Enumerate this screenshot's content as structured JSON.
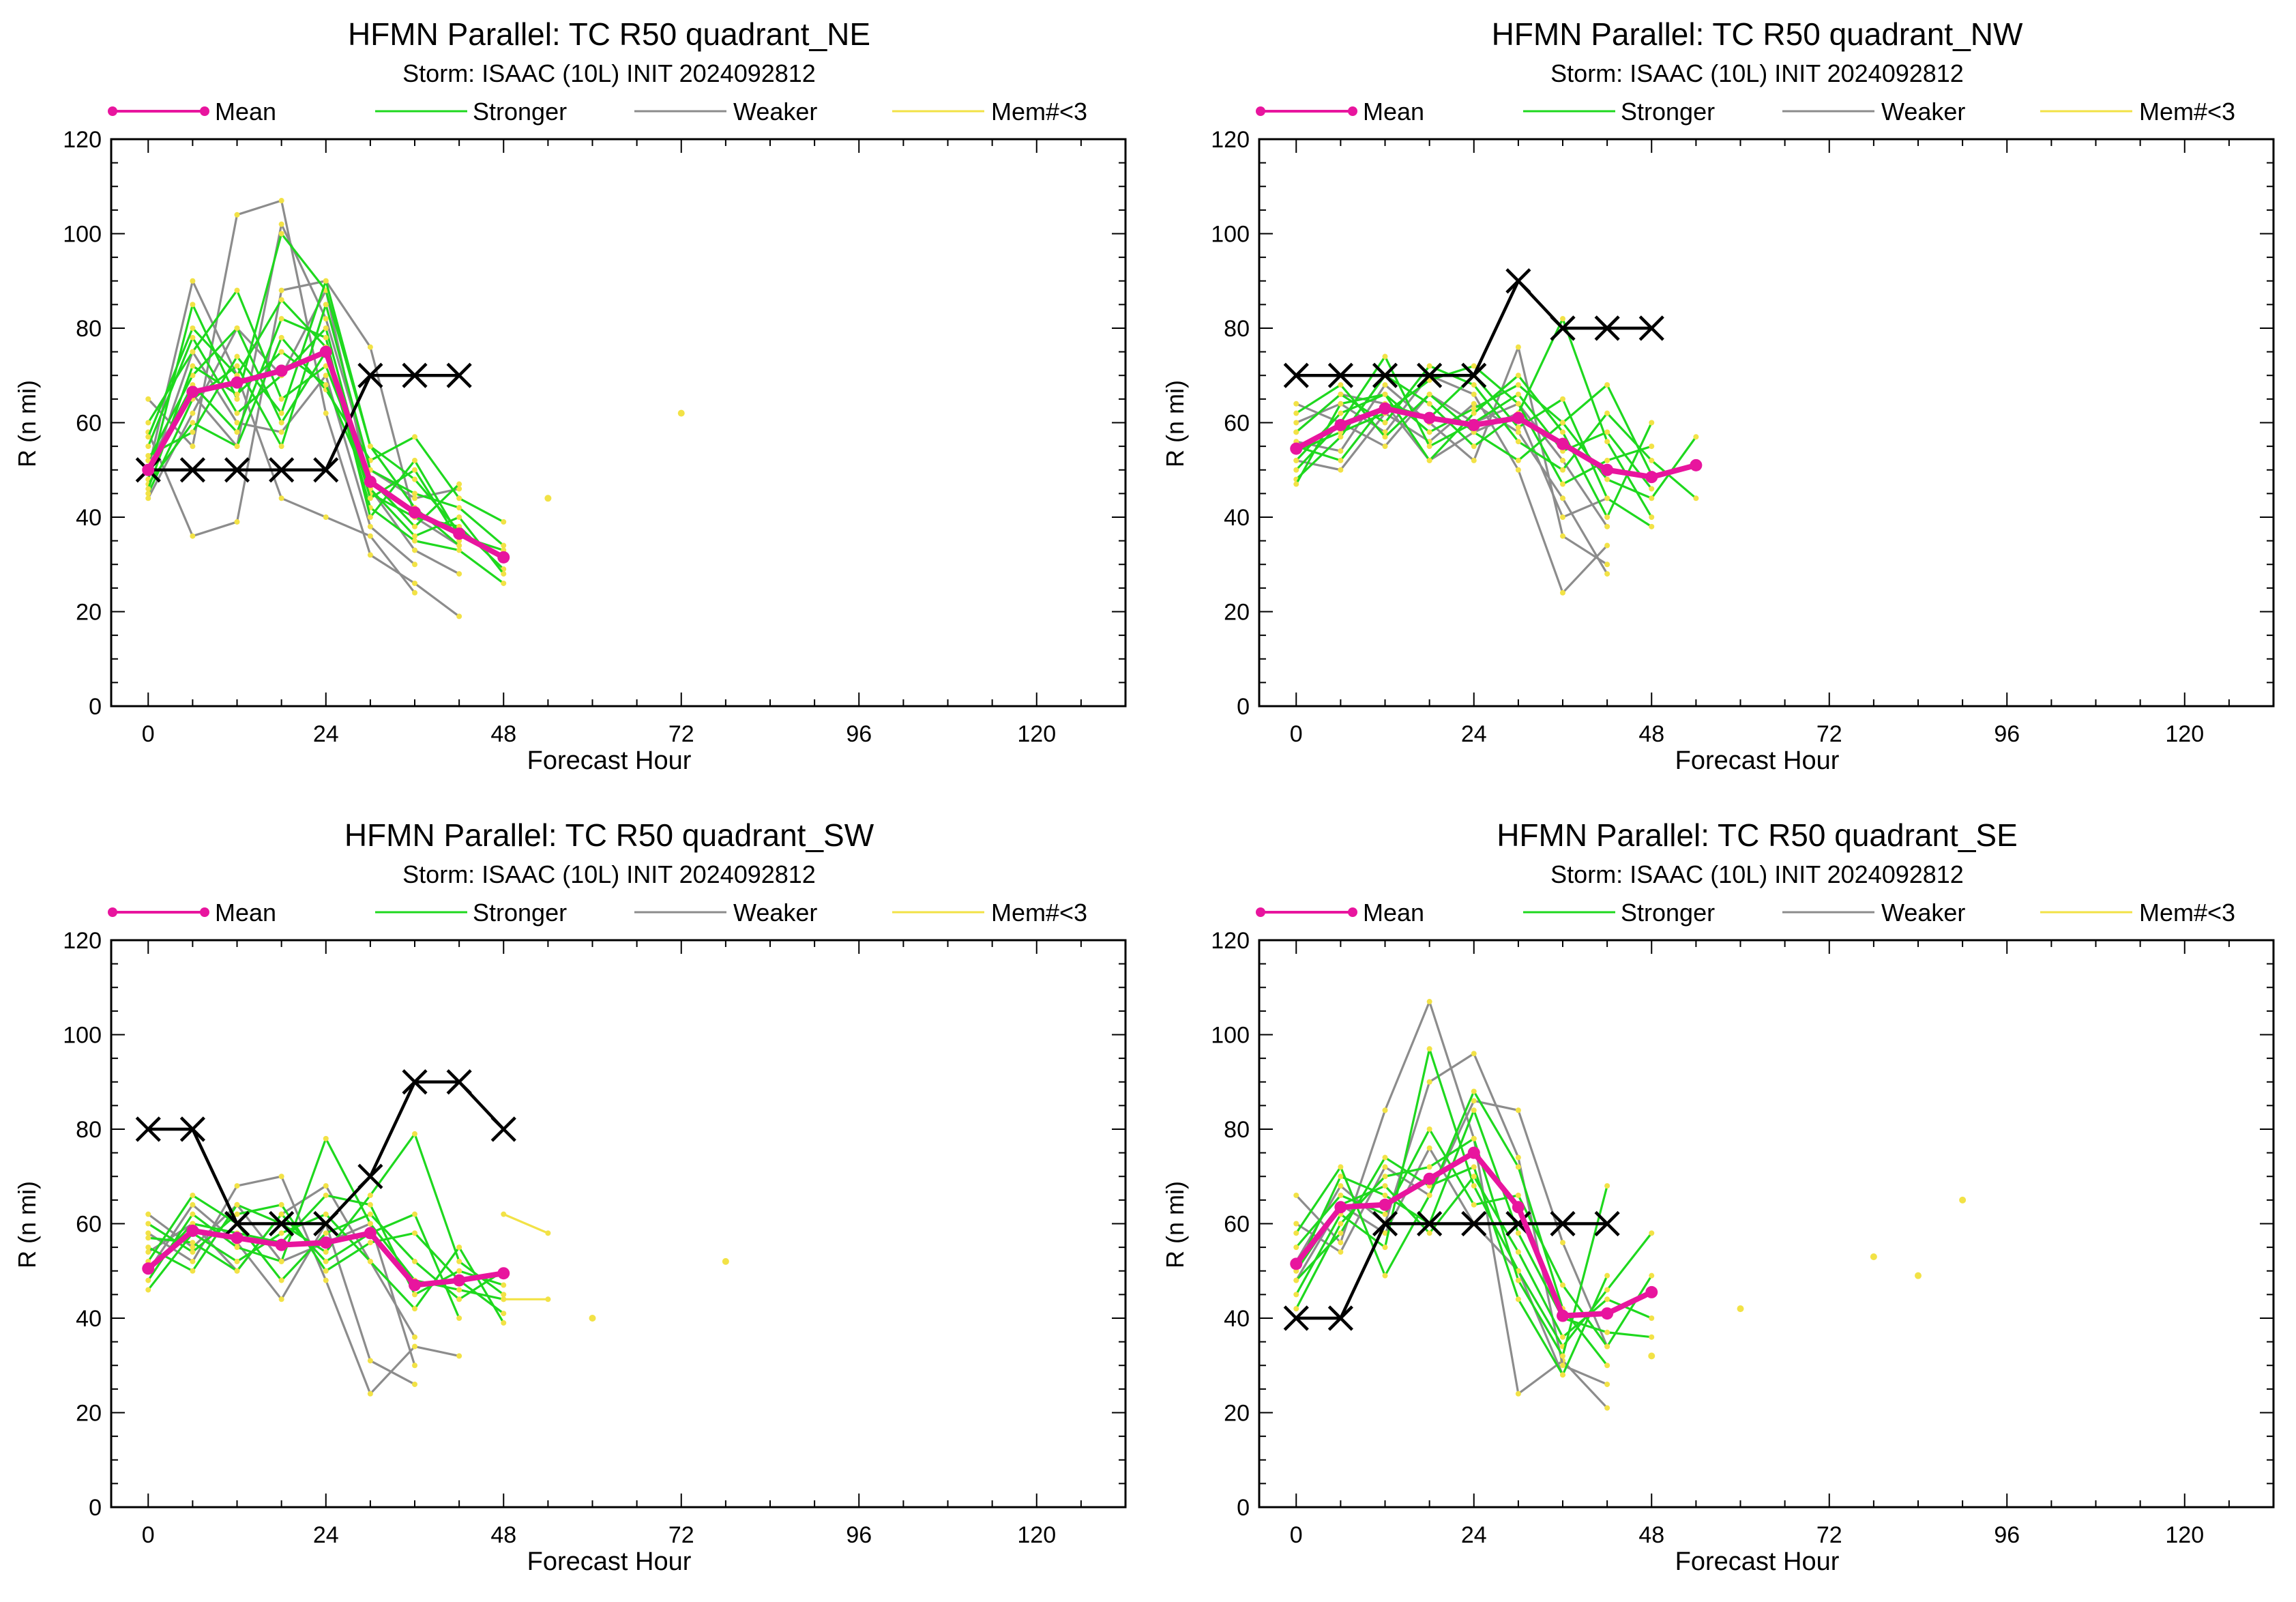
{
  "legend_labels": {
    "mean": "Mean",
    "stronger": "Stronger",
    "weaker": "Weaker",
    "few": "Mem#<3"
  },
  "colors": {
    "mean": "#e8159e",
    "stronger": "#1ed81e",
    "weaker": "#8c8c8c",
    "few": "#f2e246",
    "best_track": "#000000",
    "axes": "#000000"
  },
  "chart_data": [
    {
      "type": "line",
      "title": "HFMN Parallel: TC  R50 quadrant_NE",
      "subtitle": "Storm: ISAAC (10L) INIT 2024092812",
      "xlabel": "Forecast Hour",
      "ylabel": "R (n mi)",
      "xlim": [
        -5,
        132
      ],
      "ylim": [
        0,
        120
      ],
      "xticks": [
        0,
        24,
        48,
        72,
        96,
        120
      ],
      "yticks": [
        0,
        20,
        40,
        60,
        80,
        100,
        120
      ],
      "legend_position": "top",
      "series": [
        {
          "name": "Mean",
          "x": [
            0,
            6,
            12,
            18,
            24,
            30,
            36,
            42,
            48
          ],
          "y": [
            50,
            66.5,
            68.5,
            71,
            75,
            47.5,
            41,
            36.5,
            31.5
          ]
        },
        {
          "name": "Best track",
          "x": [
            0,
            6,
            12,
            18,
            24,
            30,
            36,
            42
          ],
          "y": [
            50,
            50,
            50,
            50,
            50,
            70,
            70,
            70
          ]
        }
      ],
      "stronger_members": [
        [
          0,
          48,
          6,
          85,
          12,
          65,
          18,
          100,
          24,
          88,
          30,
          55,
          36,
          48,
          42,
          37,
          48,
          31
        ],
        [
          0,
          52,
          6,
          70,
          12,
          80,
          18,
          60,
          24,
          75,
          30,
          42,
          36,
          35,
          42,
          33,
          48,
          26
        ],
        [
          0,
          47,
          6,
          60,
          12,
          55,
          18,
          78,
          24,
          67,
          30,
          52,
          36,
          57,
          42,
          44,
          48,
          39
        ],
        [
          0,
          55,
          6,
          78,
          12,
          62,
          18,
          70,
          24,
          80,
          30,
          45,
          36,
          40,
          42,
          38,
          48,
          29
        ],
        [
          0,
          45,
          6,
          65,
          12,
          72,
          18,
          55,
          24,
          85,
          30,
          50,
          36,
          45,
          42,
          42,
          48,
          34
        ],
        [
          0,
          60,
          6,
          75,
          12,
          88,
          18,
          65,
          24,
          72,
          30,
          48,
          36,
          38,
          42,
          47
        ],
        [
          0,
          50,
          6,
          68,
          12,
          58,
          18,
          82,
          24,
          78,
          30,
          40,
          36,
          52,
          42,
          36,
          48,
          33
        ],
        [
          0,
          53,
          6,
          58,
          12,
          74,
          18,
          62,
          24,
          90,
          30,
          55,
          36,
          42,
          42,
          34
        ],
        [
          0,
          46,
          6,
          72,
          12,
          66,
          18,
          75,
          24,
          68,
          30,
          46,
          36,
          36,
          42,
          40,
          48,
          28
        ],
        [
          0,
          57,
          6,
          80,
          12,
          70,
          18,
          86,
          24,
          76,
          30,
          44,
          36,
          50,
          42,
          35
        ]
      ],
      "weaker_members": [
        [
          0,
          65,
          6,
          55,
          12,
          104,
          18,
          107,
          24,
          62,
          30,
          32,
          36,
          26,
          42,
          19
        ],
        [
          0,
          58,
          6,
          36,
          12,
          39,
          18,
          88,
          24,
          90,
          30,
          76,
          36,
          40,
          42,
          34
        ],
        [
          0,
          50,
          6,
          90,
          12,
          70,
          18,
          44,
          24,
          40,
          30,
          36,
          36,
          24
        ],
        [
          0,
          44,
          6,
          62,
          12,
          80,
          18,
          70,
          24,
          88,
          30,
          46,
          36,
          33,
          42,
          28
        ],
        [
          0,
          52,
          6,
          66,
          12,
          55,
          18,
          102,
          24,
          82,
          30,
          50,
          36,
          44,
          42,
          46
        ],
        [
          0,
          48,
          6,
          75,
          12,
          60,
          18,
          58,
          24,
          70,
          30,
          38,
          36,
          30
        ]
      ],
      "few_points": [
        [
          54,
          44
        ],
        [
          72,
          62
        ]
      ]
    },
    {
      "type": "line",
      "title": "HFMN Parallel: TC  R50 quadrant_NW",
      "subtitle": "Storm: ISAAC (10L) INIT 2024092812",
      "xlabel": "Forecast Hour",
      "ylabel": "R (n mi)",
      "xlim": [
        -5,
        132
      ],
      "ylim": [
        0,
        120
      ],
      "xticks": [
        0,
        24,
        48,
        72,
        96,
        120
      ],
      "yticks": [
        0,
        20,
        40,
        60,
        80,
        100,
        120
      ],
      "legend_position": "top",
      "series": [
        {
          "name": "Mean",
          "x": [
            0,
            6,
            12,
            18,
            24,
            30,
            36,
            42,
            48,
            54
          ],
          "y": [
            54.5,
            59.5,
            63,
            61,
            59.5,
            61,
            55.5,
            50,
            48.5,
            51
          ]
        },
        {
          "name": "Best track",
          "x": [
            0,
            6,
            12,
            18,
            24,
            30,
            36,
            42,
            48
          ],
          "y": [
            70,
            70,
            70,
            70,
            70,
            90,
            80,
            80,
            80
          ]
        }
      ],
      "stronger_members": [
        [
          0,
          52,
          6,
          62,
          12,
          66,
          18,
          58,
          24,
          63,
          30,
          68,
          36,
          60,
          42,
          48,
          48,
          44,
          54,
          57
        ],
        [
          0,
          48,
          6,
          57,
          12,
          70,
          18,
          64,
          24,
          55,
          30,
          62,
          36,
          82,
          42,
          56,
          48,
          40
        ],
        [
          0,
          58,
          6,
          66,
          12,
          60,
          18,
          72,
          24,
          68,
          30,
          56,
          36,
          50,
          42,
          62,
          48,
          52,
          54,
          44
        ],
        [
          0,
          55,
          6,
          52,
          12,
          64,
          18,
          61,
          24,
          70,
          30,
          59,
          36,
          65,
          42,
          44,
          48,
          38
        ],
        [
          0,
          50,
          6,
          60,
          12,
          74,
          18,
          55,
          24,
          60,
          30,
          66,
          36,
          54,
          42,
          58,
          48,
          46
        ],
        [
          0,
          62,
          6,
          68,
          12,
          57,
          18,
          66,
          24,
          58,
          30,
          52,
          36,
          60,
          42,
          68,
          48,
          49
        ],
        [
          0,
          54,
          6,
          58,
          12,
          62,
          18,
          69,
          24,
          72,
          30,
          64,
          36,
          47,
          42,
          52,
          48,
          55
        ],
        [
          0,
          47,
          6,
          64,
          12,
          66,
          18,
          52,
          24,
          62,
          30,
          70,
          36,
          58,
          42,
          40,
          48,
          60
        ]
      ],
      "weaker_members": [
        [
          0,
          56,
          6,
          54,
          12,
          68,
          18,
          60,
          24,
          52,
          30,
          76,
          36,
          36,
          42,
          30
        ],
        [
          0,
          60,
          6,
          64,
          12,
          58,
          18,
          70,
          24,
          66,
          30,
          50,
          36,
          24,
          42,
          34
        ],
        [
          0,
          52,
          6,
          50,
          12,
          62,
          18,
          56,
          24,
          64,
          30,
          58,
          36,
          44,
          42,
          28
        ],
        [
          0,
          64,
          6,
          60,
          12,
          55,
          18,
          66,
          24,
          60,
          30,
          64,
          36,
          52,
          42,
          38
        ],
        [
          0,
          58,
          6,
          66,
          12,
          64,
          18,
          52,
          24,
          58,
          30,
          62,
          36,
          40,
          42,
          44
        ]
      ],
      "few_points": []
    },
    {
      "type": "line",
      "title": "HFMN Parallel: TC  R50 quadrant_SW",
      "subtitle": "Storm: ISAAC (10L) INIT 2024092812",
      "xlabel": "Forecast Hour",
      "ylabel": "R (n mi)",
      "xlim": [
        -5,
        132
      ],
      "ylim": [
        0,
        120
      ],
      "xticks": [
        0,
        24,
        48,
        72,
        96,
        120
      ],
      "yticks": [
        0,
        20,
        40,
        60,
        80,
        100,
        120
      ],
      "legend_position": "top",
      "series": [
        {
          "name": "Mean",
          "x": [
            0,
            6,
            12,
            18,
            24,
            30,
            36,
            42,
            48
          ],
          "y": [
            50.5,
            58.5,
            57,
            55.5,
            56,
            58,
            47,
            48,
            49.5
          ]
        },
        {
          "name": "Best track",
          "x": [
            0,
            6,
            12,
            18,
            24,
            30,
            36,
            42,
            48
          ],
          "y": [
            80,
            80,
            60,
            60,
            60,
            70,
            90,
            90,
            80
          ]
        }
      ],
      "stronger_members": [
        [
          0,
          48,
          6,
          62,
          12,
          55,
          18,
          52,
          24,
          78,
          30,
          60,
          36,
          48,
          42,
          46,
          48,
          44
        ],
        [
          0,
          55,
          6,
          50,
          12,
          64,
          18,
          60,
          24,
          54,
          30,
          66,
          36,
          79,
          42,
          52,
          48,
          45
        ],
        [
          0,
          46,
          6,
          58,
          12,
          52,
          18,
          58,
          24,
          62,
          30,
          52,
          36,
          42,
          42,
          55,
          48,
          39
        ],
        [
          0,
          52,
          6,
          66,
          12,
          60,
          18,
          48,
          24,
          58,
          30,
          62,
          36,
          52,
          42,
          44,
          48,
          50
        ],
        [
          0,
          60,
          6,
          54,
          12,
          62,
          18,
          64,
          24,
          50,
          30,
          56,
          36,
          58,
          42,
          48,
          48,
          41
        ],
        [
          0,
          50,
          6,
          60,
          12,
          58,
          18,
          56,
          24,
          66,
          30,
          64,
          36,
          45,
          42,
          50,
          48,
          47
        ],
        [
          0,
          57,
          6,
          56,
          12,
          50,
          18,
          62,
          24,
          52,
          30,
          58,
          36,
          62,
          42,
          40
        ]
      ],
      "weaker_members": [
        [
          0,
          58,
          6,
          52,
          12,
          68,
          18,
          70,
          24,
          48,
          30,
          24,
          36,
          34,
          42,
          32
        ],
        [
          0,
          50,
          6,
          64,
          12,
          56,
          18,
          44,
          24,
          60,
          30,
          31,
          36,
          26
        ],
        [
          0,
          54,
          6,
          60,
          12,
          50,
          18,
          62,
          24,
          68,
          30,
          52,
          36,
          36
        ],
        [
          0,
          62,
          6,
          55,
          12,
          64,
          18,
          52,
          24,
          56,
          30,
          60,
          36,
          30
        ]
      ],
      "few_lines": [
        [
          48,
          62,
          54,
          58
        ],
        [
          48,
          44,
          54,
          44
        ]
      ],
      "few_points": [
        [
          60,
          40
        ],
        [
          78,
          52
        ]
      ]
    },
    {
      "type": "line",
      "title": "HFMN Parallel: TC  R50 quadrant_SE",
      "subtitle": "Storm: ISAAC (10L) INIT 2024092812",
      "xlabel": "Forecast Hour",
      "ylabel": "R (n mi)",
      "xlim": [
        -5,
        132
      ],
      "ylim": [
        0,
        120
      ],
      "xticks": [
        0,
        24,
        48,
        72,
        96,
        120
      ],
      "yticks": [
        0,
        20,
        40,
        60,
        80,
        100,
        120
      ],
      "legend_position": "top",
      "series": [
        {
          "name": "Mean",
          "x": [
            0,
            6,
            12,
            18,
            24,
            30,
            36,
            42,
            48
          ],
          "y": [
            51.5,
            63.5,
            64,
            69.5,
            75,
            63.5,
            40.5,
            41,
            45.5
          ]
        },
        {
          "name": "Best track",
          "x": [
            0,
            6,
            12,
            18,
            24,
            30,
            36,
            42
          ],
          "y": [
            40,
            40,
            60,
            60,
            60,
            60,
            60,
            60
          ]
        }
      ],
      "stronger_members": [
        [
          0,
          45,
          6,
          62,
          12,
          55,
          18,
          97,
          24,
          68,
          30,
          50,
          36,
          34,
          42,
          46,
          48,
          58
        ],
        [
          0,
          50,
          6,
          70,
          12,
          66,
          18,
          60,
          24,
          84,
          30,
          58,
          36,
          40,
          42,
          37,
          48,
          36
        ],
        [
          0,
          48,
          6,
          58,
          12,
          74,
          18,
          68,
          24,
          72,
          30,
          44,
          36,
          28,
          42,
          49
        ],
        [
          0,
          55,
          6,
          66,
          12,
          62,
          18,
          80,
          24,
          64,
          30,
          66,
          36,
          47,
          42,
          34,
          48,
          49
        ],
        [
          0,
          42,
          6,
          60,
          12,
          70,
          18,
          72,
          24,
          78,
          30,
          48,
          36,
          32,
          42,
          68
        ],
        [
          0,
          58,
          6,
          72,
          12,
          49,
          18,
          66,
          24,
          88,
          30,
          72,
          36,
          42,
          42,
          30
        ],
        [
          0,
          50,
          6,
          64,
          12,
          68,
          18,
          58,
          24,
          70,
          30,
          54,
          36,
          36,
          42,
          44,
          48,
          40
        ]
      ],
      "weaker_members": [
        [
          0,
          66,
          6,
          56,
          12,
          84,
          18,
          107,
          24,
          78,
          30,
          24,
          36,
          31,
          42,
          21
        ],
        [
          0,
          52,
          6,
          68,
          12,
          60,
          18,
          90,
          24,
          96,
          30,
          74,
          36,
          30,
          42,
          26
        ],
        [
          0,
          60,
          6,
          54,
          12,
          72,
          18,
          66,
          24,
          86,
          30,
          84,
          36,
          56,
          42,
          34
        ],
        [
          0,
          48,
          6,
          64,
          12,
          58,
          18,
          76,
          24,
          60,
          30,
          50,
          36,
          28
        ]
      ],
      "few_points": [
        [
          48,
          32
        ],
        [
          60,
          42
        ],
        [
          78,
          53
        ],
        [
          84,
          49
        ],
        [
          90,
          65
        ]
      ]
    }
  ]
}
